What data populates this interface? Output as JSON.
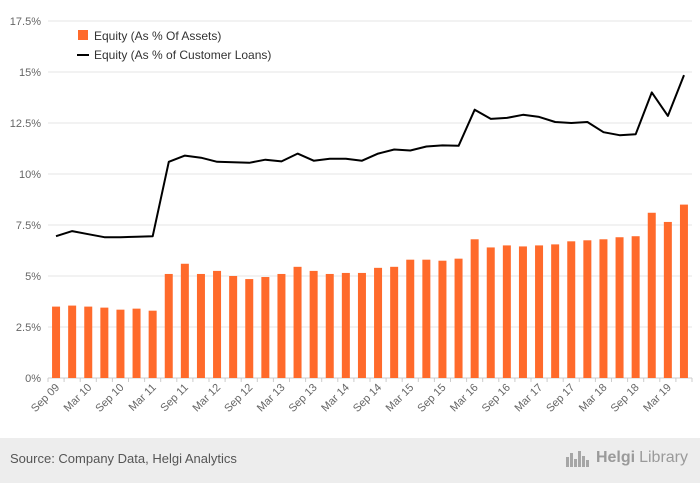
{
  "chart_data": {
    "type": "bar+line",
    "y_ticks": [
      "0%",
      "2.5%",
      "5%",
      "7.5%",
      "10%",
      "12.5%",
      "15%",
      "17.5%"
    ],
    "ylim": [
      0,
      17.5
    ],
    "x_tick_labels": [
      "Sep 09",
      "Mar 10",
      "Sep 10",
      "Mar 11",
      "Sep 11",
      "Mar 12",
      "Sep 12",
      "Mar 13",
      "Sep 13",
      "Mar 14",
      "Sep 14",
      "Mar 15",
      "Sep 15",
      "Mar 16",
      "Sep 16",
      "Mar 17",
      "Sep 17",
      "Mar 18",
      "Sep 18",
      "Mar 19"
    ],
    "legend": {
      "bar_label": "Equity (As % Of Assets)",
      "line_label": "Equity (As % of Customer Loans)"
    },
    "series": [
      {
        "name": "Equity (As % Of Assets)",
        "type": "bar",
        "color": "#ff6a2b",
        "values": [
          3.5,
          3.55,
          3.5,
          3.45,
          3.35,
          3.4,
          3.3,
          5.1,
          5.6,
          5.1,
          5.25,
          5.0,
          4.85,
          4.95,
          5.1,
          5.45,
          5.25,
          5.1,
          5.15,
          5.15,
          5.4,
          5.45,
          5.8,
          5.8,
          5.75,
          5.85,
          6.8,
          6.4,
          6.5,
          6.45,
          6.5,
          6.55,
          6.7,
          6.75,
          6.8,
          6.9,
          6.95,
          8.1,
          7.65,
          8.5
        ]
      },
      {
        "name": "Equity (As % of Customer Loans)",
        "type": "line",
        "color": "#000000",
        "values": [
          6.95,
          7.2,
          7.05,
          6.9,
          6.9,
          6.92,
          6.95,
          10.6,
          10.9,
          10.8,
          10.6,
          10.58,
          10.55,
          10.7,
          10.62,
          11.0,
          10.65,
          10.75,
          10.75,
          10.65,
          11.0,
          11.2,
          11.15,
          11.35,
          11.4,
          11.38,
          13.15,
          12.7,
          12.75,
          12.9,
          12.8,
          12.55,
          12.5,
          12.55,
          12.05,
          11.9,
          11.95,
          14.0,
          12.85,
          14.85
        ]
      }
    ]
  },
  "footer": {
    "source": "Source: Company Data, Helgi Analytics",
    "brand_part1": "Helgi",
    "brand_part2": "Library"
  },
  "brand_icon": "city-skyline-icon",
  "colors": {
    "bar": "#ff6a2b",
    "line": "#000000",
    "grid": "#e6e6e6",
    "footer_bg": "#ededed"
  }
}
